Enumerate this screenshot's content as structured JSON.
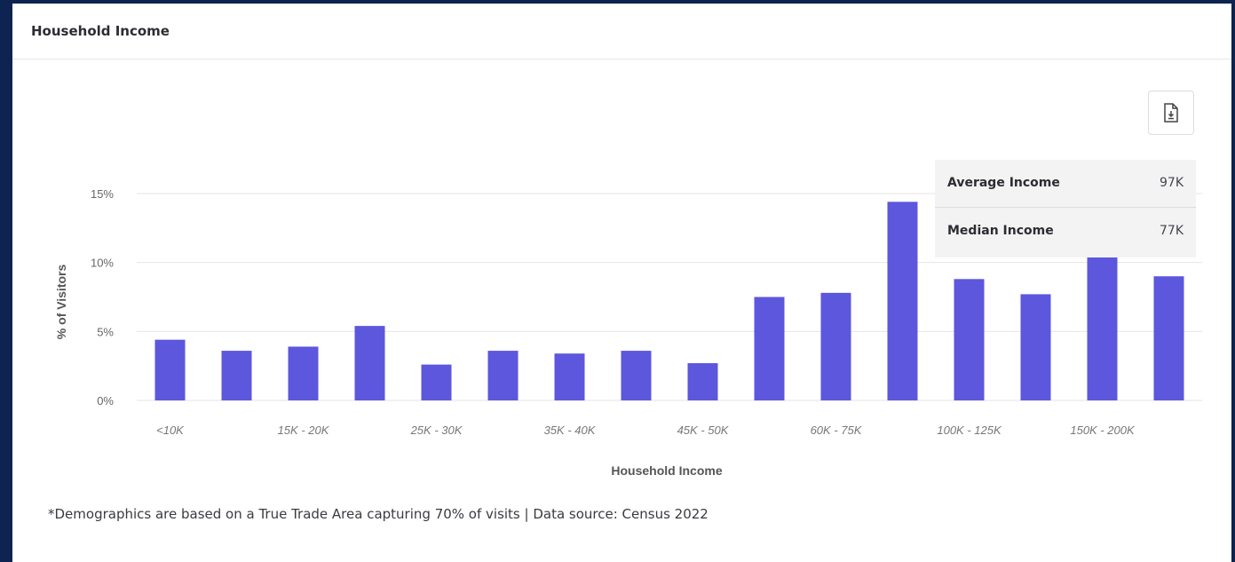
{
  "card": {
    "title": "Household Income",
    "download_icon": "file-download-icon",
    "footnote": "*Demographics are based on a True Trade Area capturing 70% of visits | Data source: Census 2022"
  },
  "stats": [
    {
      "label": "Average Income",
      "value": "97K"
    },
    {
      "label": "Median Income",
      "value": "77K"
    }
  ],
  "colors": {
    "bar": "#5c57dc",
    "grid": "#e4e4e8",
    "background": "#0d2350"
  },
  "chart_data": {
    "type": "bar",
    "title": "",
    "xlabel": "Household Income",
    "ylabel": "% of Visitors",
    "ylim": [
      0,
      15
    ],
    "yticks": [
      0,
      5,
      10,
      15
    ],
    "ytick_labels": [
      "0%",
      "5%",
      "10%",
      "15%"
    ],
    "grid": true,
    "categories": [
      "<10K",
      "",
      "15K - 20K",
      "",
      "25K - 30K",
      "",
      "35K - 40K",
      "",
      "45K - 50K",
      "",
      "60K - 75K",
      "",
      "100K - 125K",
      "",
      "150K - 200K",
      ""
    ],
    "values": [
      4.4,
      3.6,
      3.9,
      5.4,
      2.6,
      3.6,
      3.4,
      3.6,
      2.7,
      7.5,
      7.8,
      14.4,
      8.8,
      7.7,
      10.8,
      9.0
    ]
  }
}
